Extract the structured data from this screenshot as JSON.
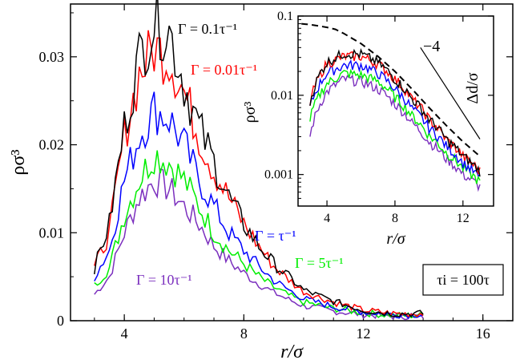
{
  "chart_data": [
    {
      "type": "line",
      "xlabel": "r/σ",
      "ylabel": "ρσ³",
      "xlim": [
        2.2,
        17
      ],
      "ylim": [
        0,
        0.036
      ],
      "xticks": [
        4,
        8,
        12,
        16
      ],
      "xtick_labels": [
        "4",
        "8",
        "12",
        "16"
      ],
      "yticks": [
        0,
        0.01,
        0.02,
        0.03
      ],
      "ytick_labels": [
        "0",
        "0.01",
        "0.02",
        "0.03"
      ],
      "grid": false,
      "series": [
        {
          "name": "Γ = 0.1τ⁻¹",
          "color": "#000000",
          "x": [
            3.0,
            3.5,
            4.0,
            4.5,
            5.0,
            5.5,
            6.0,
            6.5,
            7.0,
            7.5,
            8.0,
            8.5,
            9.0,
            9.5,
            10.0,
            11.0,
            12.0,
            13.0,
            14.0
          ],
          "y": [
            0.006,
            0.011,
            0.022,
            0.03,
            0.034,
            0.033,
            0.027,
            0.022,
            0.018,
            0.014,
            0.011,
            0.0085,
            0.0065,
            0.005,
            0.0035,
            0.0022,
            0.0012,
            0.0008,
            0.0008
          ]
        },
        {
          "name": "Γ = 0.01τ⁻¹",
          "color": "#ff0000",
          "x": [
            3.0,
            3.5,
            4.0,
            4.5,
            5.0,
            5.5,
            6.0,
            6.5,
            7.0,
            7.5,
            8.0,
            8.5,
            9.0,
            9.5,
            10.0,
            11.0,
            12.0,
            13.0,
            14.0
          ],
          "y": [
            0.006,
            0.01,
            0.021,
            0.028,
            0.031,
            0.03,
            0.026,
            0.021,
            0.017,
            0.014,
            0.011,
            0.0085,
            0.0062,
            0.0047,
            0.0033,
            0.0021,
            0.0012,
            0.0008,
            0.0008
          ]
        },
        {
          "name": "Γ = τ⁻¹",
          "color": "#0000ff",
          "x": [
            3.0,
            3.5,
            4.0,
            4.5,
            5.0,
            5.5,
            6.0,
            6.5,
            7.0,
            7.5,
            8.0,
            8.5,
            9.0,
            9.5,
            10.0,
            11.0,
            12.0,
            13.0,
            14.0
          ],
          "y": [
            0.005,
            0.008,
            0.016,
            0.021,
            0.024,
            0.023,
            0.02,
            0.016,
            0.013,
            0.01,
            0.008,
            0.0062,
            0.0046,
            0.0035,
            0.0025,
            0.0016,
            0.001,
            0.0007,
            0.0007
          ]
        },
        {
          "name": "Γ = 5τ⁻¹",
          "color": "#00ee00",
          "x": [
            3.0,
            3.5,
            4.0,
            4.5,
            5.0,
            5.5,
            6.0,
            6.5,
            7.0,
            7.5,
            8.0,
            8.5,
            9.0,
            9.5,
            10.0,
            11.0,
            12.0,
            13.0,
            14.0
          ],
          "y": [
            0.004,
            0.006,
            0.012,
            0.016,
            0.019,
            0.018,
            0.016,
            0.013,
            0.01,
            0.008,
            0.0065,
            0.005,
            0.0038,
            0.0029,
            0.0021,
            0.0014,
            0.0009,
            0.0006,
            0.0006
          ]
        },
        {
          "name": "Γ = 10τ⁻¹",
          "color": "#7b2fbe",
          "x": [
            3.0,
            3.5,
            4.0,
            4.5,
            5.0,
            5.5,
            6.0,
            6.5,
            7.0,
            7.5,
            8.0,
            8.5,
            9.0,
            9.5,
            10.0,
            11.0,
            12.0,
            13.0,
            14.0
          ],
          "y": [
            0.003,
            0.005,
            0.01,
            0.014,
            0.016,
            0.015,
            0.013,
            0.011,
            0.0085,
            0.0068,
            0.0054,
            0.0042,
            0.0032,
            0.0024,
            0.0017,
            0.0011,
            0.0007,
            0.0005,
            0.0005
          ]
        }
      ],
      "annotations": [
        {
          "text": "Γ = 0.1τ⁻¹",
          "color": "#000000"
        },
        {
          "text": "Γ = 0.01τ⁻¹",
          "color": "#ff0000"
        },
        {
          "text": "Γ = τ⁻¹",
          "color": "#0000ff"
        },
        {
          "text": "Γ = 5τ⁻¹",
          "color": "#00ee00"
        },
        {
          "text": "Γ = 10τ⁻¹",
          "color": "#7b2fbe"
        },
        {
          "text": "τi = 100τ",
          "color": "#000000"
        }
      ]
    },
    {
      "type": "line",
      "xlabel": "r/σ",
      "ylabel": "ρσ³",
      "xlim": [
        2.3,
        13.8
      ],
      "ylim": [
        0.0004,
        0.1
      ],
      "yscale": "log",
      "xticks": [
        4,
        8,
        12
      ],
      "xtick_labels": [
        "4",
        "8",
        "12"
      ],
      "yticks": [
        0.001,
        0.01,
        0.1
      ],
      "ytick_labels": [
        "0.001",
        "0.01",
        "0.1"
      ],
      "secondary_label": "Δd/σ",
      "slope_label": "−4",
      "series": [
        {
          "name": "Γ = 0.1τ⁻¹",
          "color": "#000000",
          "x": [
            3.0,
            4.0,
            5.0,
            6.0,
            7.0,
            8.0,
            9.0,
            10.0,
            11.0,
            12.0,
            13.0
          ],
          "y": [
            0.008,
            0.026,
            0.034,
            0.033,
            0.026,
            0.016,
            0.009,
            0.005,
            0.0028,
            0.0017,
            0.0011
          ]
        },
        {
          "name": "Γ = 0.01τ⁻¹",
          "color": "#ff0000",
          "x": [
            3.0,
            4.0,
            5.0,
            6.0,
            7.0,
            8.0,
            9.0,
            10.0,
            11.0,
            12.0,
            13.0
          ],
          "y": [
            0.008,
            0.025,
            0.031,
            0.031,
            0.025,
            0.016,
            0.009,
            0.005,
            0.0028,
            0.0017,
            0.0011
          ]
        },
        {
          "name": "Γ = τ⁻¹",
          "color": "#0000ff",
          "x": [
            3.0,
            4.0,
            5.0,
            6.0,
            7.0,
            8.0,
            9.0,
            10.0,
            11.0,
            12.0,
            13.0
          ],
          "y": [
            0.007,
            0.019,
            0.024,
            0.024,
            0.019,
            0.012,
            0.0068,
            0.0039,
            0.0023,
            0.0014,
            0.0009
          ]
        },
        {
          "name": "Γ = 5τ⁻¹",
          "color": "#00ee00",
          "x": [
            3.0,
            4.0,
            5.0,
            6.0,
            7.0,
            8.0,
            9.0,
            10.0,
            11.0,
            12.0,
            13.0
          ],
          "y": [
            0.005,
            0.014,
            0.019,
            0.018,
            0.015,
            0.0095,
            0.0055,
            0.0031,
            0.0019,
            0.0012,
            0.0008
          ]
        },
        {
          "name": "Γ = 10τ⁻¹",
          "color": "#7b2fbe",
          "x": [
            3.0,
            4.0,
            5.0,
            6.0,
            7.0,
            8.0,
            9.0,
            10.0,
            11.0,
            12.0,
            13.0
          ],
          "y": [
            0.003,
            0.011,
            0.016,
            0.015,
            0.012,
            0.0078,
            0.0045,
            0.0026,
            0.0016,
            0.001,
            0.0007
          ]
        },
        {
          "name": "Δd/σ",
          "color": "#000000",
          "dash": true,
          "x": [
            2.5,
            3.0,
            3.5,
            4.0,
            4.5,
            5.0,
            6.0,
            7.0,
            8.0,
            9.0,
            10.0,
            11.0,
            12.0,
            13.0
          ],
          "y": [
            0.08,
            0.078,
            0.075,
            0.072,
            0.068,
            0.06,
            0.045,
            0.031,
            0.02,
            0.012,
            0.007,
            0.0042,
            0.0026,
            0.0017
          ]
        },
        {
          "name": "slope",
          "color": "#000000",
          "x": [
            9.5,
            13.0
          ],
          "y": [
            0.04,
            0.0028
          ]
        }
      ]
    }
  ]
}
